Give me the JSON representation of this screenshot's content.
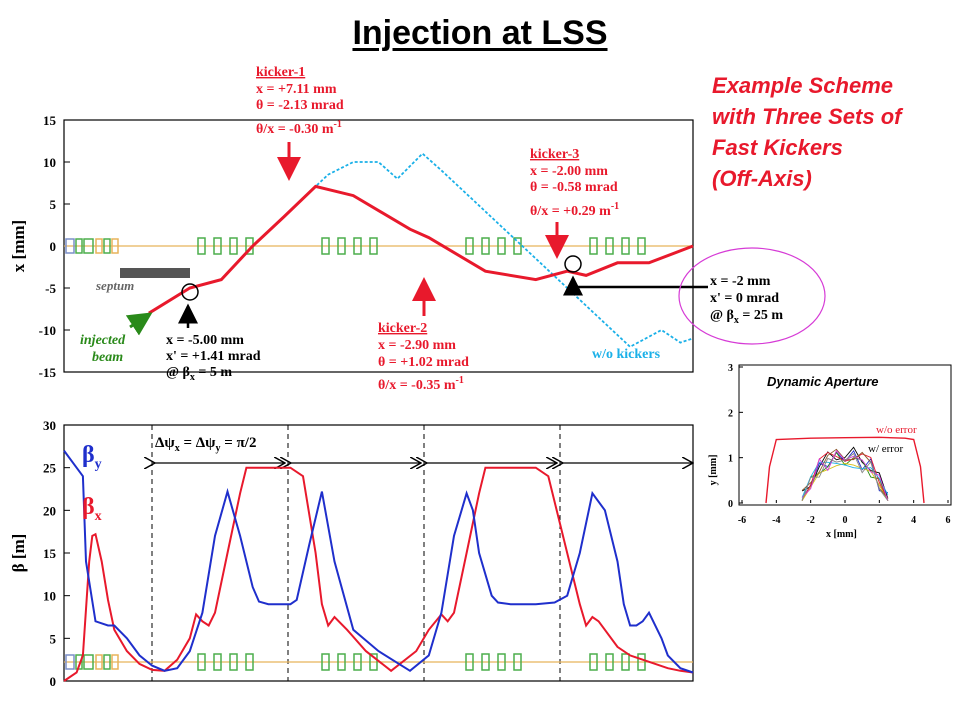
{
  "title": "Injection at LSS",
  "scheme_lines": [
    "Example Scheme",
    "with Three Sets of",
    "Fast Kickers",
    "(Off-Axis)"
  ],
  "colors": {
    "kicked": "#e8192c",
    "no_kick": "#1ab0e8",
    "beta_y": "#1f2fcc",
    "beta_x": "#e8192c",
    "injected": "#2a8a1a",
    "lattice": "#4cae4c",
    "axis_line": "#e8b35a",
    "da_circle": "#d63bd6"
  },
  "chart_data": [
    {
      "type": "line",
      "ylabel": "x [mm]",
      "ylim": [
        -15,
        15
      ],
      "yticks": [
        15,
        10,
        5,
        0,
        -5,
        -10,
        -15
      ],
      "xlim": [
        0,
        100
      ],
      "grid": false,
      "series": [
        {
          "name": "",
          "x": [
            13.5,
            20,
            25,
            30,
            35,
            40,
            46,
            55,
            58,
            67,
            75,
            80,
            83,
            88,
            93,
            100
          ],
          "y": [
            -8,
            -5,
            -4,
            0,
            3.5,
            7.1,
            6,
            2,
            1,
            -3,
            -4,
            -3,
            -3.5,
            -2,
            -2,
            0
          ]
        },
        {
          "name": "w/o kickers",
          "x": [
            13.5,
            20,
            25,
            30,
            35,
            40,
            42,
            46,
            50,
            53,
            57,
            60,
            65,
            70,
            75,
            80,
            85,
            90,
            95,
            98,
            100
          ],
          "y": [
            -8,
            -5,
            -4,
            0,
            3.5,
            7.1,
            8.5,
            10,
            10,
            8,
            11,
            9,
            5.5,
            2,
            -1.5,
            -5,
            -8.5,
            -12,
            -10,
            -11.5,
            -11
          ]
        }
      ],
      "annotations": {
        "septum": "septum",
        "injected": [
          "injected",
          "beam"
        ],
        "injection_point": [
          "x = -5.00 mm",
          "x' = +1.41 mrad",
          "@ β",
          "x",
          " = 5 m"
        ],
        "kicker1": [
          "kicker-1",
          "x = +7.11 mm",
          "θ = -2.13 mrad",
          "θ/x = -0.30 m",
          "-1"
        ],
        "kicker2": [
          "kicker-2",
          "x = -2.90 mm",
          "θ = +1.02 mrad",
          "θ/x = -0.35 m",
          "-1"
        ],
        "kicker3": [
          "kicker-3",
          "x = -2.00 mm",
          "θ = -0.58 mrad",
          "θ/x = +0.29 m",
          "-1"
        ],
        "target": [
          "x = -2 mm",
          "x' = 0 mrad",
          "@ β",
          "x",
          " = 25 m"
        ]
      }
    },
    {
      "type": "line",
      "ylabel": "β [m]",
      "ylim": [
        0,
        30
      ],
      "yticks": [
        30,
        25,
        20,
        15,
        10,
        5,
        0
      ],
      "xlim": [
        0,
        100
      ],
      "grid": false,
      "phase_advance": [
        "Δψ",
        "x",
        " = Δψ",
        "y",
        " = π/2"
      ],
      "legend": [
        {
          "sym": "β",
          "sub": "y"
        },
        {
          "sym": "β",
          "sub": "x"
        }
      ],
      "series": [
        {
          "name": "βy",
          "x": [
            0,
            2,
            3,
            3.5,
            5,
            7,
            8,
            10,
            12,
            14,
            16,
            18,
            20,
            22,
            24,
            26,
            28,
            30,
            31,
            32.5,
            33.5,
            35,
            36,
            37,
            39,
            41,
            43,
            46,
            50,
            55,
            58,
            60,
            62,
            64,
            65,
            66,
            68,
            69,
            71,
            73,
            75,
            78,
            80,
            82,
            84,
            86,
            88,
            89,
            90,
            91,
            92,
            93,
            95,
            96,
            98,
            100
          ],
          "y": [
            27,
            25,
            24,
            14,
            7,
            6.5,
            6.5,
            5,
            3,
            1.8,
            1.2,
            1.5,
            3.5,
            8,
            17,
            22.2,
            17,
            11,
            9.3,
            9,
            9,
            9,
            9,
            9.5,
            16,
            22.2,
            14,
            6,
            3.5,
            1.2,
            3,
            8,
            17,
            22,
            20,
            15,
            10,
            9.2,
            9,
            9,
            9,
            9.2,
            10,
            15,
            22,
            20,
            14,
            9,
            6.5,
            6.5,
            7,
            8,
            5,
            3,
            1.5,
            1
          ]
        },
        {
          "name": "βx",
          "x": [
            0,
            2,
            3,
            4,
            4.5,
            5,
            6,
            7,
            8,
            10,
            12,
            14,
            16,
            18,
            20,
            21,
            22,
            23,
            24,
            26,
            28,
            29,
            30,
            31,
            33,
            36,
            38,
            40,
            41,
            42,
            43,
            45,
            48,
            52,
            56,
            58,
            60,
            61,
            62,
            64,
            66,
            67,
            68,
            69,
            72,
            75,
            77,
            80,
            82,
            83,
            84,
            85,
            86,
            88,
            90,
            92,
            94,
            96,
            98,
            100
          ],
          "y": [
            0,
            1,
            3,
            14,
            17,
            17.2,
            14,
            9.5,
            6,
            3.5,
            2,
            1.3,
            1.2,
            2.5,
            5,
            7.8,
            7,
            6.5,
            8,
            15,
            22,
            25,
            25,
            25,
            25,
            25,
            24,
            15,
            9,
            6.5,
            7.5,
            6,
            3.5,
            1.2,
            3.5,
            6,
            7.8,
            7,
            8,
            15,
            22,
            25,
            25,
            25,
            25,
            25,
            24,
            15,
            9,
            6.5,
            7.5,
            7,
            6,
            4,
            3,
            2.5,
            2,
            1.5,
            1.2,
            1
          ]
        }
      ]
    },
    {
      "type": "scatter",
      "title": "Dynamic Aperture",
      "xlabel": "x [mm]",
      "ylabel": "y [mm]",
      "xlim": [
        -6,
        6
      ],
      "ylim": [
        0,
        3
      ],
      "xticks": [
        -6,
        -4,
        -2,
        0,
        2,
        4,
        6
      ],
      "yticks": [
        0,
        1,
        2,
        3
      ],
      "series": [
        {
          "name": "w/o error",
          "x": [
            -4.6,
            -4.4,
            -4,
            -2,
            0,
            2,
            3.5,
            4,
            4.4,
            4.6
          ],
          "y": [
            0,
            0.8,
            1.4,
            1.43,
            1.44,
            1.45,
            1.43,
            1.4,
            0.8,
            0
          ]
        },
        {
          "name": "w/ error",
          "x": [
            -2.5,
            -2,
            -1.5,
            -1,
            -0.5,
            0,
            0.5,
            1,
            1.5,
            2,
            2.5
          ],
          "y": [
            0.1,
            0.5,
            0.85,
            0.95,
            1.05,
            1.1,
            1.05,
            0.95,
            0.85,
            0.5,
            0.1
          ]
        }
      ]
    }
  ]
}
